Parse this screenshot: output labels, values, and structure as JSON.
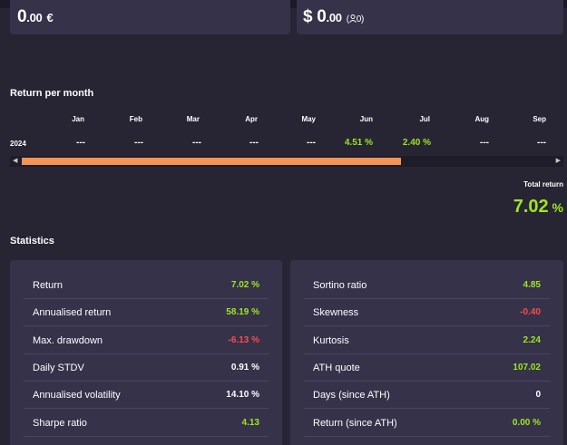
{
  "balances": {
    "eur": {
      "integer": "0",
      "decimal": ".00",
      "currency": "€"
    },
    "usd": {
      "symbol": "$",
      "integer": "0",
      "decimal": ".00",
      "sub_open": "(",
      "user_icon": "user-icon",
      "sub_count": "0)"
    }
  },
  "return_per_month": {
    "title": "Return per month",
    "months": [
      "Jan",
      "Feb",
      "Mar",
      "Apr",
      "May",
      "Jun",
      "Jul",
      "Aug",
      "Sep"
    ],
    "rows": [
      {
        "year": "2024",
        "values": [
          "---",
          "---",
          "---",
          "---",
          "---",
          "4.51 %",
          "2.40 %",
          "---",
          "---"
        ]
      }
    ],
    "scroll_left_icon": "chevron-left-icon",
    "scroll_right_icon": "chevron-right-icon"
  },
  "total_return": {
    "label": "Total return",
    "number": "7.02",
    "unit": " %"
  },
  "statistics": {
    "title": "Statistics",
    "left": [
      {
        "label": "Return",
        "value": "7.02 %",
        "tone": "positive"
      },
      {
        "label": "Annualised return",
        "value": "58.19 %",
        "tone": "positive"
      },
      {
        "label": "Max. drawdown",
        "value": "-6.13 %",
        "tone": "negative"
      },
      {
        "label": "Daily STDV",
        "value": "0.91 %",
        "tone": "neutral"
      },
      {
        "label": "Annualised volatility",
        "value": "14.10 %",
        "tone": "neutral"
      },
      {
        "label": "Sharpe ratio",
        "value": "4.13",
        "tone": "positive"
      }
    ],
    "right": [
      {
        "label": "Sortino ratio",
        "value": "4.85",
        "tone": "positive"
      },
      {
        "label": "Skewness",
        "value": "-0.40",
        "tone": "negative"
      },
      {
        "label": "Kurtosis",
        "value": "2.24",
        "tone": "positive"
      },
      {
        "label": "ATH quote",
        "value": "107.02",
        "tone": "positive"
      },
      {
        "label": "Days (since ATH)",
        "value": "0",
        "tone": "neutral"
      },
      {
        "label": "Return (since ATH)",
        "value": "0.00 %",
        "tone": "positive"
      }
    ]
  },
  "colors": {
    "positive": "#9ee61f",
    "negative": "#ff4a4a",
    "neutral": "#ffffff",
    "accent": "#f29457",
    "background": "#272434",
    "card": "#35324a"
  }
}
